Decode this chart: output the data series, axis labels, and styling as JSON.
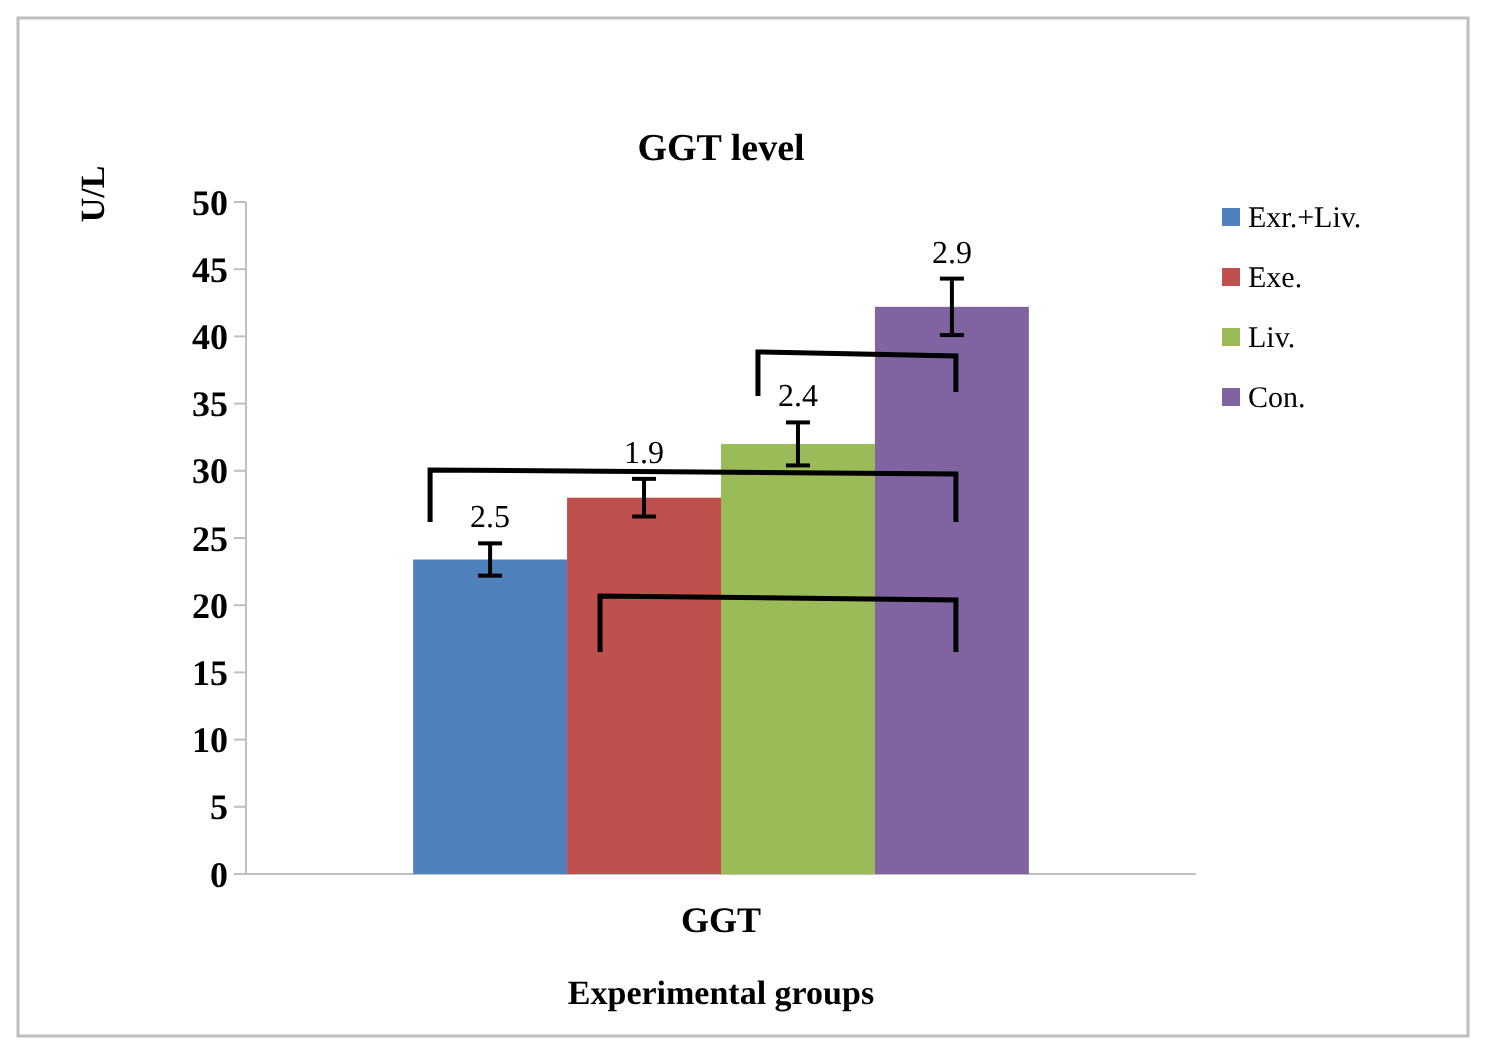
{
  "chart_data": {
    "type": "bar",
    "title": "GGT level",
    "xlabel": "Experimental groups",
    "ylabel": "U/L",
    "categories": [
      "GGT"
    ],
    "series": [
      {
        "name": "Exr.+Liv.",
        "color": "#4f81bd",
        "values": [
          23.4
        ],
        "errors": [
          1.2
        ]
      },
      {
        "name": "Exe.",
        "color": "#c0504d",
        "values": [
          28.0
        ],
        "errors": [
          1.4
        ]
      },
      {
        "name": "Liv.",
        "color": "#9bbb59",
        "values": [
          32.0
        ],
        "errors": [
          1.6
        ]
      },
      {
        "name": "Con.",
        "color": "#8064a2",
        "values": [
          42.2
        ],
        "errors": [
          2.1
        ]
      }
    ],
    "annotations": [
      "2.5",
      "1.9",
      "2.4",
      "2.9"
    ],
    "ylim": [
      0,
      50
    ],
    "yticks": [
      0,
      5,
      10,
      15,
      20,
      25,
      30,
      35,
      40,
      45,
      50
    ],
    "grid": false,
    "legend": "right"
  }
}
